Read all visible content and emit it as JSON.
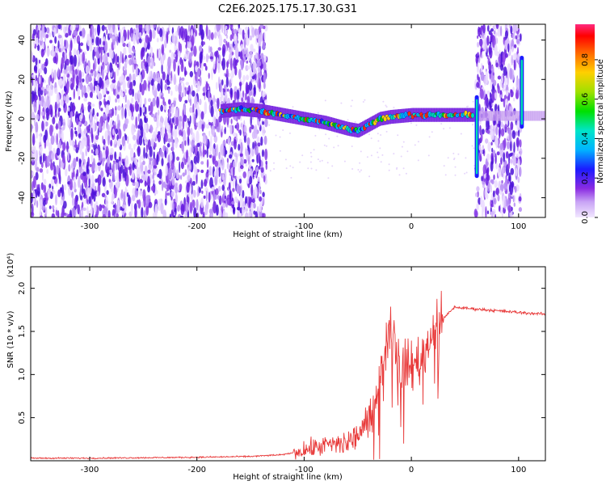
{
  "figure_title": "C2E6.2025.175.17.30.G31",
  "chart_data": [
    {
      "type": "heatmap",
      "title": "C2E6.2025.175.17.30.G31",
      "xlabel": "Height of straight line (km)",
      "ylabel": "Frequency (Hz)",
      "xlim": [
        -355,
        125
      ],
      "ylim": [
        -50,
        48
      ],
      "xticks": [
        -300,
        -200,
        -100,
        0,
        100
      ],
      "yticks": [
        -40,
        -20,
        0,
        20,
        40
      ],
      "colorbar": {
        "label": "Normalized spectral amplitude",
        "range": [
          0,
          0.98
        ],
        "ticks": [
          0.0,
          0.2,
          0.4,
          0.6,
          0.8
        ]
      },
      "noise_regions": [
        {
          "x_from": -355,
          "x_to": -135,
          "density": "high"
        },
        {
          "x_from": 60,
          "x_to": 102,
          "density": "high"
        }
      ],
      "frequency_trace": {
        "x": [
          -178,
          -160,
          -140,
          -120,
          -100,
          -80,
          -60,
          -50,
          -40,
          -30,
          -20,
          0,
          20,
          40,
          58
        ],
        "y": [
          4,
          5,
          4,
          2,
          0,
          -2,
          -5,
          -6,
          -3,
          0,
          1,
          2,
          2,
          2,
          2
        ]
      },
      "vertical_spikes": [
        {
          "x": 61,
          "y_from": -30,
          "y_to": 12
        },
        {
          "x": 103,
          "y_from": -5,
          "y_to": 32
        }
      ],
      "grid": false
    },
    {
      "type": "line",
      "xlabel": "Height of straight line (km)",
      "ylabel": "SNR (10 * v/v)",
      "axis_multiplier": "(x10⁴)",
      "xlim": [
        -355,
        125
      ],
      "ylim": [
        0,
        2.25
      ],
      "xticks": [
        -300,
        -200,
        -100,
        0,
        100
      ],
      "yticks": [
        0.5,
        1.0,
        1.5,
        2.0
      ],
      "series": [
        {
          "color": "#e83a3a",
          "x": [
            -355,
            -300,
            -200,
            -150,
            -120,
            -100,
            -80,
            -60,
            -50,
            -40,
            -30,
            -25,
            -20,
            -15,
            -10,
            0,
            10,
            20,
            30,
            40,
            60,
            80,
            100,
            125
          ],
          "y": [
            0.03,
            0.03,
            0.04,
            0.05,
            0.07,
            0.12,
            0.18,
            0.2,
            0.3,
            0.45,
            0.9,
            1.3,
            1.6,
            1.4,
            1.1,
            1.1,
            1.2,
            1.45,
            1.65,
            1.78,
            1.76,
            1.74,
            1.72,
            1.7
          ]
        }
      ],
      "grid": false
    }
  ]
}
